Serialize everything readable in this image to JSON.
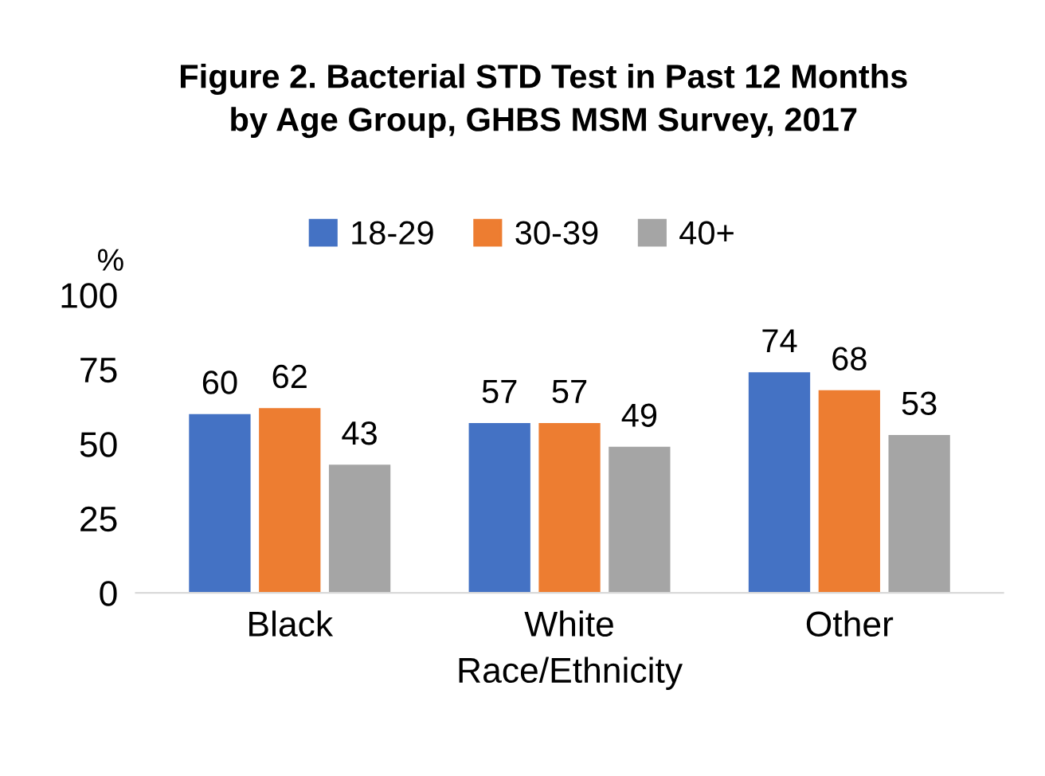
{
  "chart_data": {
    "type": "bar",
    "title": "Figure 2. Bacterial STD Test in Past 12 Months\nby Age Group, GHBS MSM Survey, 2017",
    "xlabel": "Race/Ethnicity",
    "ylabel": "%",
    "categories": [
      "Black",
      "White",
      "Other"
    ],
    "series": [
      {
        "name": "18-29",
        "color": "#4472c4",
        "values": [
          60,
          57,
          74
        ]
      },
      {
        "name": "30-39",
        "color": "#ed7d31",
        "values": [
          62,
          57,
          68
        ]
      },
      {
        "name": "40+",
        "color": "#a5a5a5",
        "values": [
          43,
          49,
          53
        ]
      }
    ],
    "ylim": [
      0,
      100
    ],
    "yticks": [
      0,
      25,
      50,
      75,
      100
    ],
    "grid": false,
    "legend": "top",
    "data_labels": true
  }
}
